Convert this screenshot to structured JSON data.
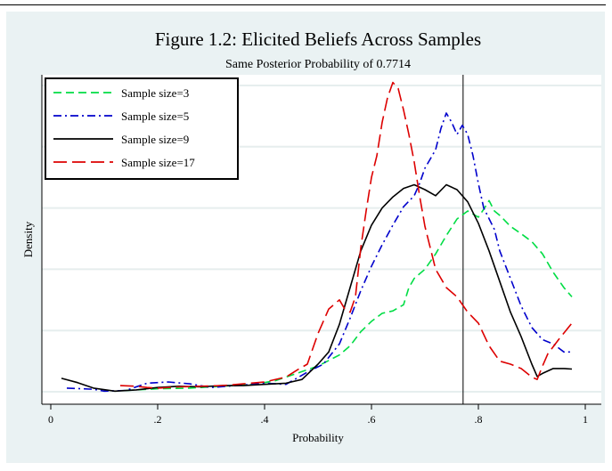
{
  "chart_data": {
    "type": "line",
    "title": "Figure 1.2: Elicited Beliefs Across Samples",
    "subtitle": "Same Posterior Probability of 0.7714",
    "xlabel": "Probability",
    "ylabel": "Density",
    "xlim": [
      0,
      1
    ],
    "ylim": [
      0,
      5
    ],
    "xticks": [
      {
        "value": 0,
        "label": "0"
      },
      {
        "value": 0.2,
        "label": ".2"
      },
      {
        "value": 0.4,
        "label": ".4"
      },
      {
        "value": 0.6,
        "label": ".6"
      },
      {
        "value": 0.8,
        "label": ".8"
      },
      {
        "value": 1,
        "label": "1"
      }
    ],
    "ygrid": [
      0,
      1,
      2,
      3,
      4,
      5
    ],
    "grid": "horizontal",
    "legend_position": "top-left",
    "reference_line": {
      "x": 0.7714
    },
    "series": [
      {
        "name": "Sample size=3",
        "color": "#00dd44",
        "dash": "dashed",
        "points": [
          [
            0.14,
            0.02
          ],
          [
            0.2,
            0.05
          ],
          [
            0.26,
            0.06
          ],
          [
            0.3,
            0.08
          ],
          [
            0.34,
            0.1
          ],
          [
            0.38,
            0.12
          ],
          [
            0.42,
            0.18
          ],
          [
            0.46,
            0.3
          ],
          [
            0.5,
            0.42
          ],
          [
            0.54,
            0.6
          ],
          [
            0.56,
            0.75
          ],
          [
            0.58,
            0.98
          ],
          [
            0.6,
            1.15
          ],
          [
            0.62,
            1.28
          ],
          [
            0.64,
            1.32
          ],
          [
            0.66,
            1.42
          ],
          [
            0.67,
            1.7
          ],
          [
            0.68,
            1.85
          ],
          [
            0.7,
            2.0
          ],
          [
            0.72,
            2.25
          ],
          [
            0.74,
            2.55
          ],
          [
            0.76,
            2.82
          ],
          [
            0.78,
            2.95
          ],
          [
            0.8,
            2.85
          ],
          [
            0.81,
            2.98
          ],
          [
            0.82,
            3.12
          ],
          [
            0.83,
            2.95
          ],
          [
            0.84,
            2.88
          ],
          [
            0.86,
            2.7
          ],
          [
            0.88,
            2.58
          ],
          [
            0.9,
            2.45
          ],
          [
            0.92,
            2.25
          ],
          [
            0.94,
            1.95
          ],
          [
            0.96,
            1.7
          ],
          [
            0.975,
            1.55
          ]
        ]
      },
      {
        "name": "Sample size=5",
        "color": "#0000cc",
        "dash": "dashdot",
        "points": [
          [
            0.03,
            0.06
          ],
          [
            0.08,
            0.04
          ],
          [
            0.1,
            0.01
          ],
          [
            0.14,
            0.02
          ],
          [
            0.18,
            0.14
          ],
          [
            0.22,
            0.16
          ],
          [
            0.26,
            0.13
          ],
          [
            0.3,
            0.07
          ],
          [
            0.36,
            0.11
          ],
          [
            0.4,
            0.14
          ],
          [
            0.44,
            0.12
          ],
          [
            0.48,
            0.32
          ],
          [
            0.51,
            0.45
          ],
          [
            0.54,
            0.78
          ],
          [
            0.56,
            1.2
          ],
          [
            0.58,
            1.65
          ],
          [
            0.6,
            2.05
          ],
          [
            0.62,
            2.4
          ],
          [
            0.64,
            2.72
          ],
          [
            0.66,
            3.02
          ],
          [
            0.68,
            3.2
          ],
          [
            0.69,
            3.4
          ],
          [
            0.7,
            3.65
          ],
          [
            0.71,
            3.8
          ],
          [
            0.72,
            3.95
          ],
          [
            0.73,
            4.3
          ],
          [
            0.74,
            4.55
          ],
          [
            0.75,
            4.4
          ],
          [
            0.76,
            4.2
          ],
          [
            0.77,
            4.35
          ],
          [
            0.78,
            4.2
          ],
          [
            0.79,
            3.85
          ],
          [
            0.8,
            3.4
          ],
          [
            0.81,
            3.0
          ],
          [
            0.83,
            2.65
          ],
          [
            0.84,
            2.3
          ],
          [
            0.86,
            1.85
          ],
          [
            0.88,
            1.4
          ],
          [
            0.9,
            1.05
          ],
          [
            0.92,
            0.85
          ],
          [
            0.94,
            0.78
          ],
          [
            0.96,
            0.65
          ],
          [
            0.975,
            0.65
          ]
        ]
      },
      {
        "name": "Sample size=9",
        "color": "#000000",
        "dash": "solid",
        "points": [
          [
            0.02,
            0.22
          ],
          [
            0.05,
            0.15
          ],
          [
            0.08,
            0.06
          ],
          [
            0.12,
            0.01
          ],
          [
            0.16,
            0.03
          ],
          [
            0.2,
            0.07
          ],
          [
            0.24,
            0.09
          ],
          [
            0.28,
            0.08
          ],
          [
            0.32,
            0.1
          ],
          [
            0.36,
            0.1
          ],
          [
            0.4,
            0.12
          ],
          [
            0.44,
            0.14
          ],
          [
            0.47,
            0.2
          ],
          [
            0.5,
            0.45
          ],
          [
            0.52,
            0.65
          ],
          [
            0.54,
            1.1
          ],
          [
            0.56,
            1.7
          ],
          [
            0.58,
            2.3
          ],
          [
            0.6,
            2.72
          ],
          [
            0.62,
            3.0
          ],
          [
            0.64,
            3.18
          ],
          [
            0.66,
            3.32
          ],
          [
            0.68,
            3.38
          ],
          [
            0.7,
            3.3
          ],
          [
            0.72,
            3.2
          ],
          [
            0.74,
            3.38
          ],
          [
            0.76,
            3.3
          ],
          [
            0.78,
            3.1
          ],
          [
            0.8,
            2.75
          ],
          [
            0.82,
            2.3
          ],
          [
            0.84,
            1.8
          ],
          [
            0.86,
            1.3
          ],
          [
            0.88,
            0.9
          ],
          [
            0.9,
            0.45
          ],
          [
            0.91,
            0.25
          ],
          [
            0.92,
            0.3
          ],
          [
            0.94,
            0.38
          ],
          [
            0.96,
            0.38
          ],
          [
            0.975,
            0.37
          ]
        ]
      },
      {
        "name": "Sample size=17",
        "color": "#dd0000",
        "dash": "longdash",
        "points": [
          [
            0.13,
            0.1
          ],
          [
            0.16,
            0.09
          ],
          [
            0.18,
            0.07
          ],
          [
            0.2,
            0.06
          ],
          [
            0.24,
            0.08
          ],
          [
            0.28,
            0.09
          ],
          [
            0.32,
            0.1
          ],
          [
            0.36,
            0.13
          ],
          [
            0.4,
            0.16
          ],
          [
            0.44,
            0.24
          ],
          [
            0.46,
            0.35
          ],
          [
            0.48,
            0.45
          ],
          [
            0.5,
            0.95
          ],
          [
            0.52,
            1.35
          ],
          [
            0.54,
            1.5
          ],
          [
            0.55,
            1.35
          ],
          [
            0.56,
            1.3
          ],
          [
            0.57,
            1.55
          ],
          [
            0.58,
            2.35
          ],
          [
            0.59,
            2.95
          ],
          [
            0.6,
            3.5
          ],
          [
            0.61,
            3.85
          ],
          [
            0.62,
            4.4
          ],
          [
            0.63,
            4.8
          ],
          [
            0.64,
            5.05
          ],
          [
            0.65,
            4.95
          ],
          [
            0.66,
            4.6
          ],
          [
            0.67,
            4.2
          ],
          [
            0.68,
            3.75
          ],
          [
            0.69,
            3.2
          ],
          [
            0.7,
            2.7
          ],
          [
            0.72,
            2.0
          ],
          [
            0.74,
            1.7
          ],
          [
            0.76,
            1.55
          ],
          [
            0.78,
            1.3
          ],
          [
            0.8,
            1.12
          ],
          [
            0.82,
            0.75
          ],
          [
            0.84,
            0.5
          ],
          [
            0.86,
            0.45
          ],
          [
            0.88,
            0.38
          ],
          [
            0.9,
            0.24
          ],
          [
            0.91,
            0.2
          ],
          [
            0.92,
            0.42
          ],
          [
            0.93,
            0.62
          ],
          [
            0.95,
            0.85
          ],
          [
            0.975,
            1.12
          ]
        ]
      }
    ]
  }
}
